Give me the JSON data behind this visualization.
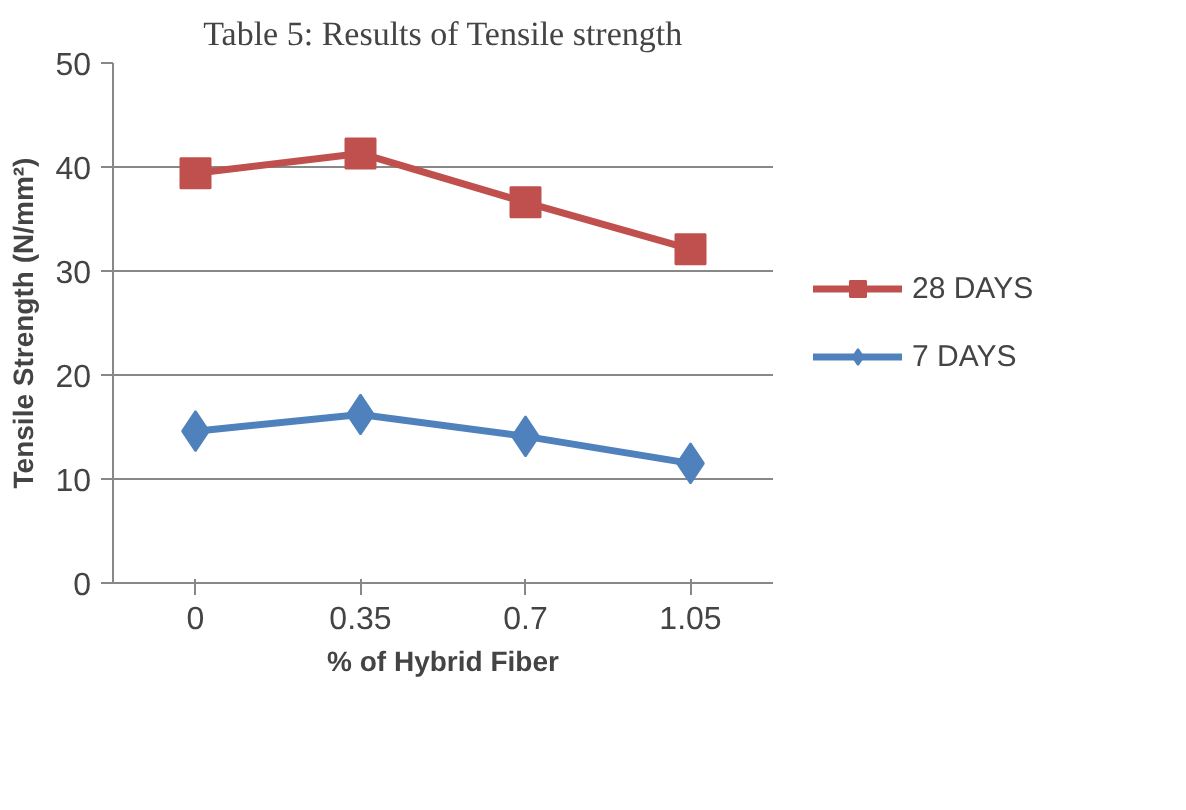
{
  "chart_data": {
    "type": "line",
    "title": "Table 5: Results of Tensile strength",
    "xlabel": "% of Hybrid Fiber",
    "ylabel": "Tensile Strength (N/mm²)",
    "categories": [
      "0",
      "0.35",
      "0.7",
      "1.05"
    ],
    "series": [
      {
        "name": "28 DAYS",
        "color": "#c0504d",
        "marker": "square",
        "values": [
          39.4,
          41.3,
          36.6,
          32.1
        ]
      },
      {
        "name": "7 DAYS",
        "color": "#4f81bd",
        "marker": "diamond",
        "values": [
          14.6,
          16.2,
          14.1,
          11.5
        ]
      }
    ],
    "ylim": [
      0,
      50
    ],
    "yticks": [
      0,
      10,
      20,
      30,
      40,
      50
    ],
    "grid": "y",
    "legend": "right",
    "line_style": "solid"
  }
}
